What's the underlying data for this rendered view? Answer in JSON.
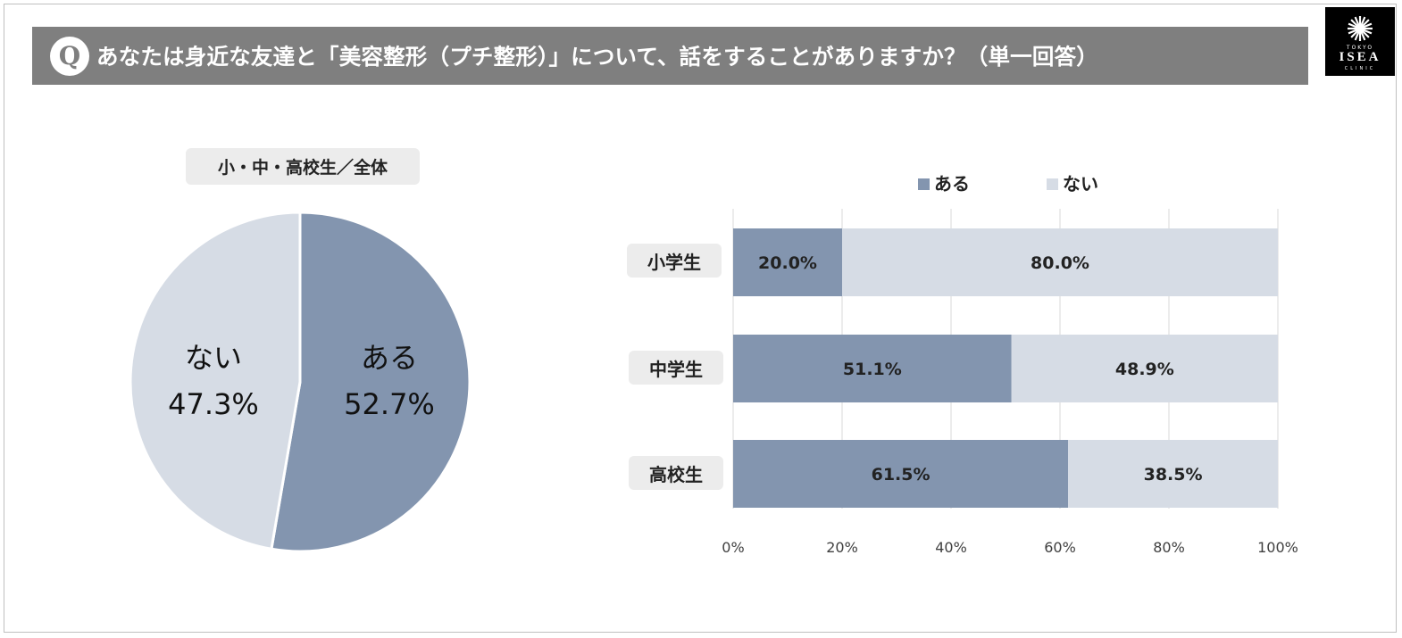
{
  "title": {
    "badge": "Q",
    "text": "あなたは身近な友達と「美容整形（プチ整形）」について、話をすることがありますか？（単一回答）"
  },
  "logo": {
    "line1": "TOKYO",
    "line2": "ISEA",
    "line3": "CLINIC"
  },
  "colors": {
    "aru": "#8395af",
    "nai": "#d6dce5",
    "title_bg": "#7f7f7f",
    "pill_bg": "#ececec"
  },
  "chart_data": [
    {
      "type": "pie",
      "title": "小・中・高校生／全体",
      "slices": [
        {
          "label": "ある",
          "value": 52.7,
          "display": "52.7%"
        },
        {
          "label": "ない",
          "value": 47.3,
          "display": "47.3%"
        }
      ]
    },
    {
      "type": "bar",
      "orientation": "horizontal",
      "stacked": true,
      "categories": [
        "小学生",
        "中学生",
        "高校生"
      ],
      "series": [
        {
          "name": "ある",
          "values": [
            20.0,
            51.1,
            61.5
          ],
          "labels": [
            "20.0%",
            "51.1%",
            "61.5%"
          ]
        },
        {
          "name": "ない",
          "values": [
            80.0,
            48.9,
            38.5
          ],
          "labels": [
            "80.0%",
            "48.9%",
            "38.5%"
          ]
        }
      ],
      "xlim": [
        0,
        100
      ],
      "xticks": [
        "0%",
        "20%",
        "40%",
        "60%",
        "80%",
        "100%"
      ],
      "grid": true,
      "legend": "top"
    }
  ]
}
